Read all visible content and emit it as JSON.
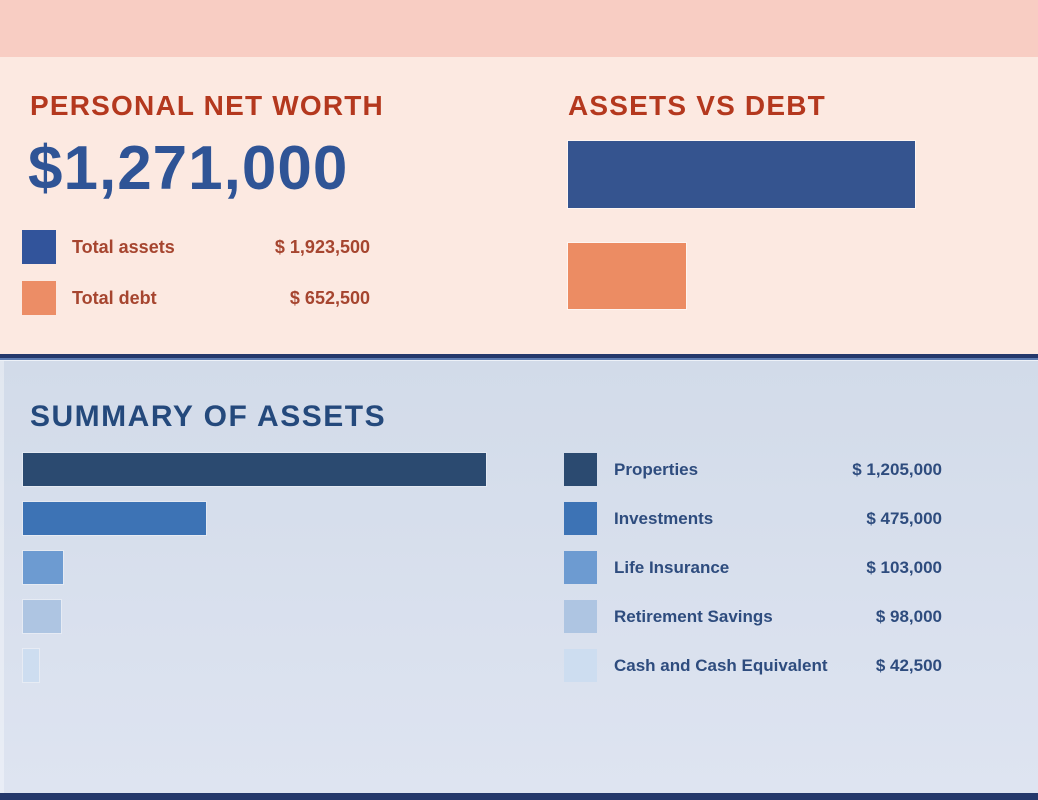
{
  "colors": {
    "top_strip": "#f8cdc3",
    "upper_bg": "#fce9e1",
    "title_red": "#b4381e",
    "legend_red": "#a6452f",
    "net_worth_blue": "#2f5496",
    "divider_navy": "#24386b",
    "divider_steel": "#5d7bb0",
    "lower_bg_top": "#d2dbe9",
    "lower_bg_bottom": "#dee4f1",
    "summary_blue": "#24497c",
    "legend_text_blue": "#2e4c7e",
    "bottom_strip": "#24386b"
  },
  "net_worth": {
    "title": "PERSONAL NET WORTH",
    "amount": "$1,271,000",
    "legend": [
      {
        "label": "Total assets",
        "value": "$ 1,923,500",
        "color": "#32549b"
      },
      {
        "label": "Total debt",
        "value": "$ 652,500",
        "color": "#ec8d66"
      }
    ]
  },
  "assets_vs_debt": {
    "title": "ASSETS VS DEBT"
  },
  "summary": {
    "title": "SUMMARY OF ASSETS"
  },
  "chart_data": [
    {
      "type": "bar",
      "orientation": "horizontal",
      "title": "ASSETS VS DEBT",
      "categories": [
        "Total assets",
        "Total debt"
      ],
      "values": [
        1923500,
        652500
      ],
      "value_labels": [
        "$ 1,923,500",
        "$ 652,500"
      ],
      "colors": [
        "#35548f",
        "#ec8c63"
      ],
      "xlim": [
        0,
        1923500
      ],
      "grid": false,
      "axes_visible": false,
      "legend_position": "separate-left-panel"
    },
    {
      "type": "bar",
      "orientation": "horizontal",
      "title": "SUMMARY OF ASSETS",
      "categories": [
        "Properties",
        "Investments",
        "Life Insurance",
        "Retirement Savings",
        "Cash and Cash Equivalent"
      ],
      "values": [
        1205000,
        475000,
        103000,
        98000,
        42500
      ],
      "value_labels": [
        "$ 1,205,000",
        "$ 475,000",
        "$ 103,000",
        "$ 98,000",
        "$ 42,500"
      ],
      "colors": [
        "#2b4a70",
        "#3d73b5",
        "#6d9bd1",
        "#aec5e2",
        "#cdddf0"
      ],
      "xlim": [
        0,
        1205000
      ],
      "grid": false,
      "axes_visible": false,
      "legend_position": "right"
    }
  ]
}
